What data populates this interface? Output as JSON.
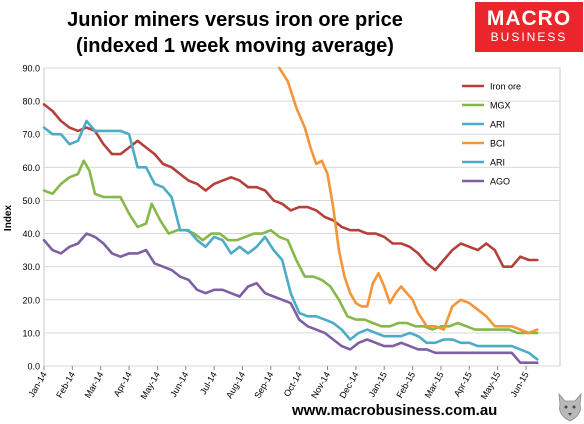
{
  "chart_data": {
    "type": "line",
    "title_lines": [
      "Junior miners versus iron ore price",
      "(indexed 1 week moving average)"
    ],
    "ylabel": "Index",
    "ylim": [
      0,
      90
    ],
    "yticks": [
      "0.0",
      "10.0",
      "20.0",
      "30.0",
      "40.0",
      "50.0",
      "60.0",
      "70.0",
      "80.0",
      "90.0"
    ],
    "xlim": [
      0,
      17
    ],
    "xticks": [
      "Jan-14",
      "Feb-14",
      "Mar-14",
      "Apr-14",
      "May-14",
      "Jun-14",
      "Jul-14",
      "Aug-14",
      "Sep-14",
      "Oct-14",
      "Nov-14",
      "Dec-14",
      "Jan-15",
      "Feb-15",
      "Mar-15",
      "Apr-15",
      "May-15",
      "Jun-15"
    ],
    "legend_position": "top-right",
    "series": [
      {
        "name": "Iron ore",
        "color": "#b5403b",
        "points": [
          [
            0,
            79
          ],
          [
            0.3,
            77
          ],
          [
            0.6,
            74
          ],
          [
            0.9,
            72
          ],
          [
            1.2,
            71
          ],
          [
            1.5,
            72
          ],
          [
            1.8,
            71
          ],
          [
            2.1,
            67
          ],
          [
            2.4,
            64
          ],
          [
            2.7,
            64
          ],
          [
            3,
            66
          ],
          [
            3.3,
            68
          ],
          [
            3.6,
            66
          ],
          [
            3.9,
            64
          ],
          [
            4.2,
            61
          ],
          [
            4.5,
            60
          ],
          [
            4.8,
            58
          ],
          [
            5.1,
            56
          ],
          [
            5.4,
            55
          ],
          [
            5.7,
            53
          ],
          [
            6,
            55
          ],
          [
            6.3,
            56
          ],
          [
            6.6,
            57
          ],
          [
            6.9,
            56
          ],
          [
            7.2,
            54
          ],
          [
            7.5,
            54
          ],
          [
            7.8,
            53
          ],
          [
            8.1,
            50
          ],
          [
            8.4,
            49
          ],
          [
            8.7,
            47
          ],
          [
            9,
            48
          ],
          [
            9.3,
            48
          ],
          [
            9.6,
            47
          ],
          [
            9.9,
            45
          ],
          [
            10.2,
            44
          ],
          [
            10.5,
            42
          ],
          [
            10.8,
            41
          ],
          [
            11.1,
            41
          ],
          [
            11.4,
            40
          ],
          [
            11.7,
            40
          ],
          [
            12,
            39
          ],
          [
            12.3,
            37
          ],
          [
            12.6,
            37
          ],
          [
            12.9,
            36
          ],
          [
            13.2,
            34
          ],
          [
            13.5,
            31
          ],
          [
            13.8,
            29
          ],
          [
            14.1,
            32
          ],
          [
            14.4,
            35
          ],
          [
            14.7,
            37
          ],
          [
            15,
            36
          ],
          [
            15.3,
            35
          ],
          [
            15.6,
            37
          ],
          [
            15.9,
            35
          ],
          [
            16.2,
            30
          ],
          [
            16.5,
            30
          ],
          [
            16.8,
            33
          ],
          [
            17.1,
            32
          ],
          [
            17.4,
            32
          ]
        ]
      },
      {
        "name": "MGX",
        "color": "#86b848",
        "points": [
          [
            0,
            53
          ],
          [
            0.3,
            52
          ],
          [
            0.6,
            55
          ],
          [
            0.9,
            57
          ],
          [
            1.2,
            58
          ],
          [
            1.4,
            62
          ],
          [
            1.6,
            59
          ],
          [
            1.8,
            52
          ],
          [
            2.1,
            51
          ],
          [
            2.4,
            51
          ],
          [
            2.7,
            51
          ],
          [
            3,
            46
          ],
          [
            3.3,
            42
          ],
          [
            3.6,
            43
          ],
          [
            3.8,
            49
          ],
          [
            4.1,
            44
          ],
          [
            4.4,
            40
          ],
          [
            4.7,
            41
          ],
          [
            5,
            41
          ],
          [
            5.3,
            40
          ],
          [
            5.6,
            38
          ],
          [
            5.9,
            40
          ],
          [
            6.2,
            40
          ],
          [
            6.5,
            38
          ],
          [
            6.8,
            38
          ],
          [
            7.1,
            39
          ],
          [
            7.4,
            40
          ],
          [
            7.7,
            40
          ],
          [
            8,
            41
          ],
          [
            8.3,
            39
          ],
          [
            8.6,
            38
          ],
          [
            8.9,
            32
          ],
          [
            9.2,
            27
          ],
          [
            9.5,
            27
          ],
          [
            9.8,
            26
          ],
          [
            10.1,
            24
          ],
          [
            10.4,
            20
          ],
          [
            10.7,
            15
          ],
          [
            11,
            14
          ],
          [
            11.3,
            14
          ],
          [
            11.6,
            13
          ],
          [
            11.9,
            12
          ],
          [
            12.2,
            12
          ],
          [
            12.5,
            13
          ],
          [
            12.8,
            13
          ],
          [
            13.1,
            12
          ],
          [
            13.4,
            12
          ],
          [
            13.7,
            11
          ],
          [
            14,
            12
          ],
          [
            14.3,
            12
          ],
          [
            14.6,
            13
          ],
          [
            14.9,
            12
          ],
          [
            15.2,
            11
          ],
          [
            15.5,
            11
          ],
          [
            15.8,
            11
          ],
          [
            16.1,
            11
          ],
          [
            16.4,
            11
          ],
          [
            16.7,
            10
          ],
          [
            17,
            10
          ],
          [
            17.4,
            10
          ]
        ]
      },
      {
        "name": "ARI",
        "color": "#4cacc6",
        "points": [
          [
            0,
            72
          ],
          [
            0.3,
            70
          ],
          [
            0.6,
            70
          ],
          [
            0.9,
            67
          ],
          [
            1.2,
            68
          ],
          [
            1.5,
            74
          ],
          [
            1.8,
            71
          ],
          [
            2.1,
            71
          ],
          [
            2.4,
            71
          ],
          [
            2.7,
            71
          ],
          [
            3,
            70
          ],
          [
            3.3,
            60
          ],
          [
            3.6,
            60
          ],
          [
            3.9,
            55
          ],
          [
            4.2,
            54
          ],
          [
            4.5,
            51
          ],
          [
            4.8,
            41
          ],
          [
            5.1,
            41
          ],
          [
            5.4,
            38
          ],
          [
            5.7,
            36
          ],
          [
            6,
            39
          ],
          [
            6.3,
            38
          ],
          [
            6.6,
            34
          ],
          [
            6.9,
            36
          ],
          [
            7.2,
            34
          ],
          [
            7.5,
            36
          ],
          [
            7.8,
            39
          ],
          [
            8.1,
            35
          ],
          [
            8.4,
            32
          ],
          [
            8.7,
            22
          ],
          [
            9,
            16
          ],
          [
            9.3,
            15
          ],
          [
            9.6,
            15
          ],
          [
            9.9,
            14
          ],
          [
            10.2,
            13
          ],
          [
            10.5,
            11
          ],
          [
            10.8,
            8
          ],
          [
            11.1,
            10
          ],
          [
            11.4,
            11
          ],
          [
            11.7,
            10
          ],
          [
            12,
            9
          ],
          [
            12.3,
            9
          ],
          [
            12.6,
            9
          ],
          [
            12.9,
            10
          ],
          [
            13.2,
            9
          ],
          [
            13.5,
            7
          ],
          [
            13.8,
            7
          ],
          [
            14.1,
            8
          ],
          [
            14.4,
            8
          ],
          [
            14.7,
            7
          ],
          [
            15,
            7
          ],
          [
            15.3,
            6
          ],
          [
            15.6,
            6
          ],
          [
            15.9,
            6
          ],
          [
            16.2,
            6
          ],
          [
            16.5,
            6
          ],
          [
            16.8,
            5
          ],
          [
            17.1,
            4
          ],
          [
            17.4,
            2
          ]
        ]
      },
      {
        "name": "BCI",
        "color": "#f39539",
        "points": [
          [
            8.3,
            90
          ],
          [
            8.6,
            86
          ],
          [
            8.9,
            78
          ],
          [
            9.2,
            72
          ],
          [
            9.4,
            66
          ],
          [
            9.6,
            61
          ],
          [
            9.8,
            62
          ],
          [
            10,
            58
          ],
          [
            10.2,
            48
          ],
          [
            10.4,
            35
          ],
          [
            10.6,
            27
          ],
          [
            10.8,
            22
          ],
          [
            11,
            19
          ],
          [
            11.2,
            18
          ],
          [
            11.4,
            18
          ],
          [
            11.6,
            25
          ],
          [
            11.8,
            28
          ],
          [
            12,
            24
          ],
          [
            12.2,
            19
          ],
          [
            12.4,
            22
          ],
          [
            12.6,
            24
          ],
          [
            12.8,
            22
          ],
          [
            13,
            20
          ],
          [
            13.2,
            16
          ],
          [
            13.5,
            12
          ],
          [
            13.8,
            12
          ],
          [
            14.1,
            11
          ],
          [
            14.4,
            18
          ],
          [
            14.7,
            20
          ],
          [
            15,
            19
          ],
          [
            15.3,
            17
          ],
          [
            15.6,
            15
          ],
          [
            15.9,
            12
          ],
          [
            16.2,
            12
          ],
          [
            16.5,
            12
          ],
          [
            16.8,
            11
          ],
          [
            17.1,
            10
          ],
          [
            17.4,
            11
          ]
        ]
      },
      {
        "name": "ARI",
        "color": "#4cacc6",
        "points": []
      },
      {
        "name": "AGO",
        "color": "#7f5fa4",
        "points": [
          [
            0,
            38
          ],
          [
            0.3,
            35
          ],
          [
            0.6,
            34
          ],
          [
            0.9,
            36
          ],
          [
            1.2,
            37
          ],
          [
            1.5,
            40
          ],
          [
            1.8,
            39
          ],
          [
            2.1,
            37
          ],
          [
            2.4,
            34
          ],
          [
            2.7,
            33
          ],
          [
            3,
            34
          ],
          [
            3.3,
            34
          ],
          [
            3.6,
            35
          ],
          [
            3.9,
            31
          ],
          [
            4.2,
            30
          ],
          [
            4.5,
            29
          ],
          [
            4.8,
            27
          ],
          [
            5.1,
            26
          ],
          [
            5.4,
            23
          ],
          [
            5.7,
            22
          ],
          [
            6,
            23
          ],
          [
            6.3,
            23
          ],
          [
            6.6,
            22
          ],
          [
            6.9,
            21
          ],
          [
            7.2,
            24
          ],
          [
            7.5,
            25
          ],
          [
            7.8,
            22
          ],
          [
            8.1,
            21
          ],
          [
            8.4,
            20
          ],
          [
            8.7,
            19
          ],
          [
            9,
            14
          ],
          [
            9.3,
            12
          ],
          [
            9.6,
            11
          ],
          [
            9.9,
            10
          ],
          [
            10.2,
            8
          ],
          [
            10.5,
            6
          ],
          [
            10.8,
            5
          ],
          [
            11.1,
            7
          ],
          [
            11.4,
            8
          ],
          [
            11.7,
            7
          ],
          [
            12,
            6
          ],
          [
            12.3,
            6
          ],
          [
            12.6,
            7
          ],
          [
            12.9,
            6
          ],
          [
            13.2,
            5
          ],
          [
            13.5,
            5
          ],
          [
            13.8,
            4
          ],
          [
            14.1,
            4
          ],
          [
            14.4,
            4
          ],
          [
            14.7,
            4
          ],
          [
            15,
            4
          ],
          [
            15.3,
            4
          ],
          [
            15.6,
            4
          ],
          [
            15.9,
            4
          ],
          [
            16.2,
            4
          ],
          [
            16.5,
            4
          ],
          [
            16.8,
            1
          ],
          [
            17.1,
            1
          ],
          [
            17.4,
            1
          ]
        ]
      }
    ]
  },
  "logo": {
    "line1": "MACRO",
    "line2": "BUSINESS"
  },
  "footer": {
    "url": "www.macrobusiness.com.au"
  }
}
